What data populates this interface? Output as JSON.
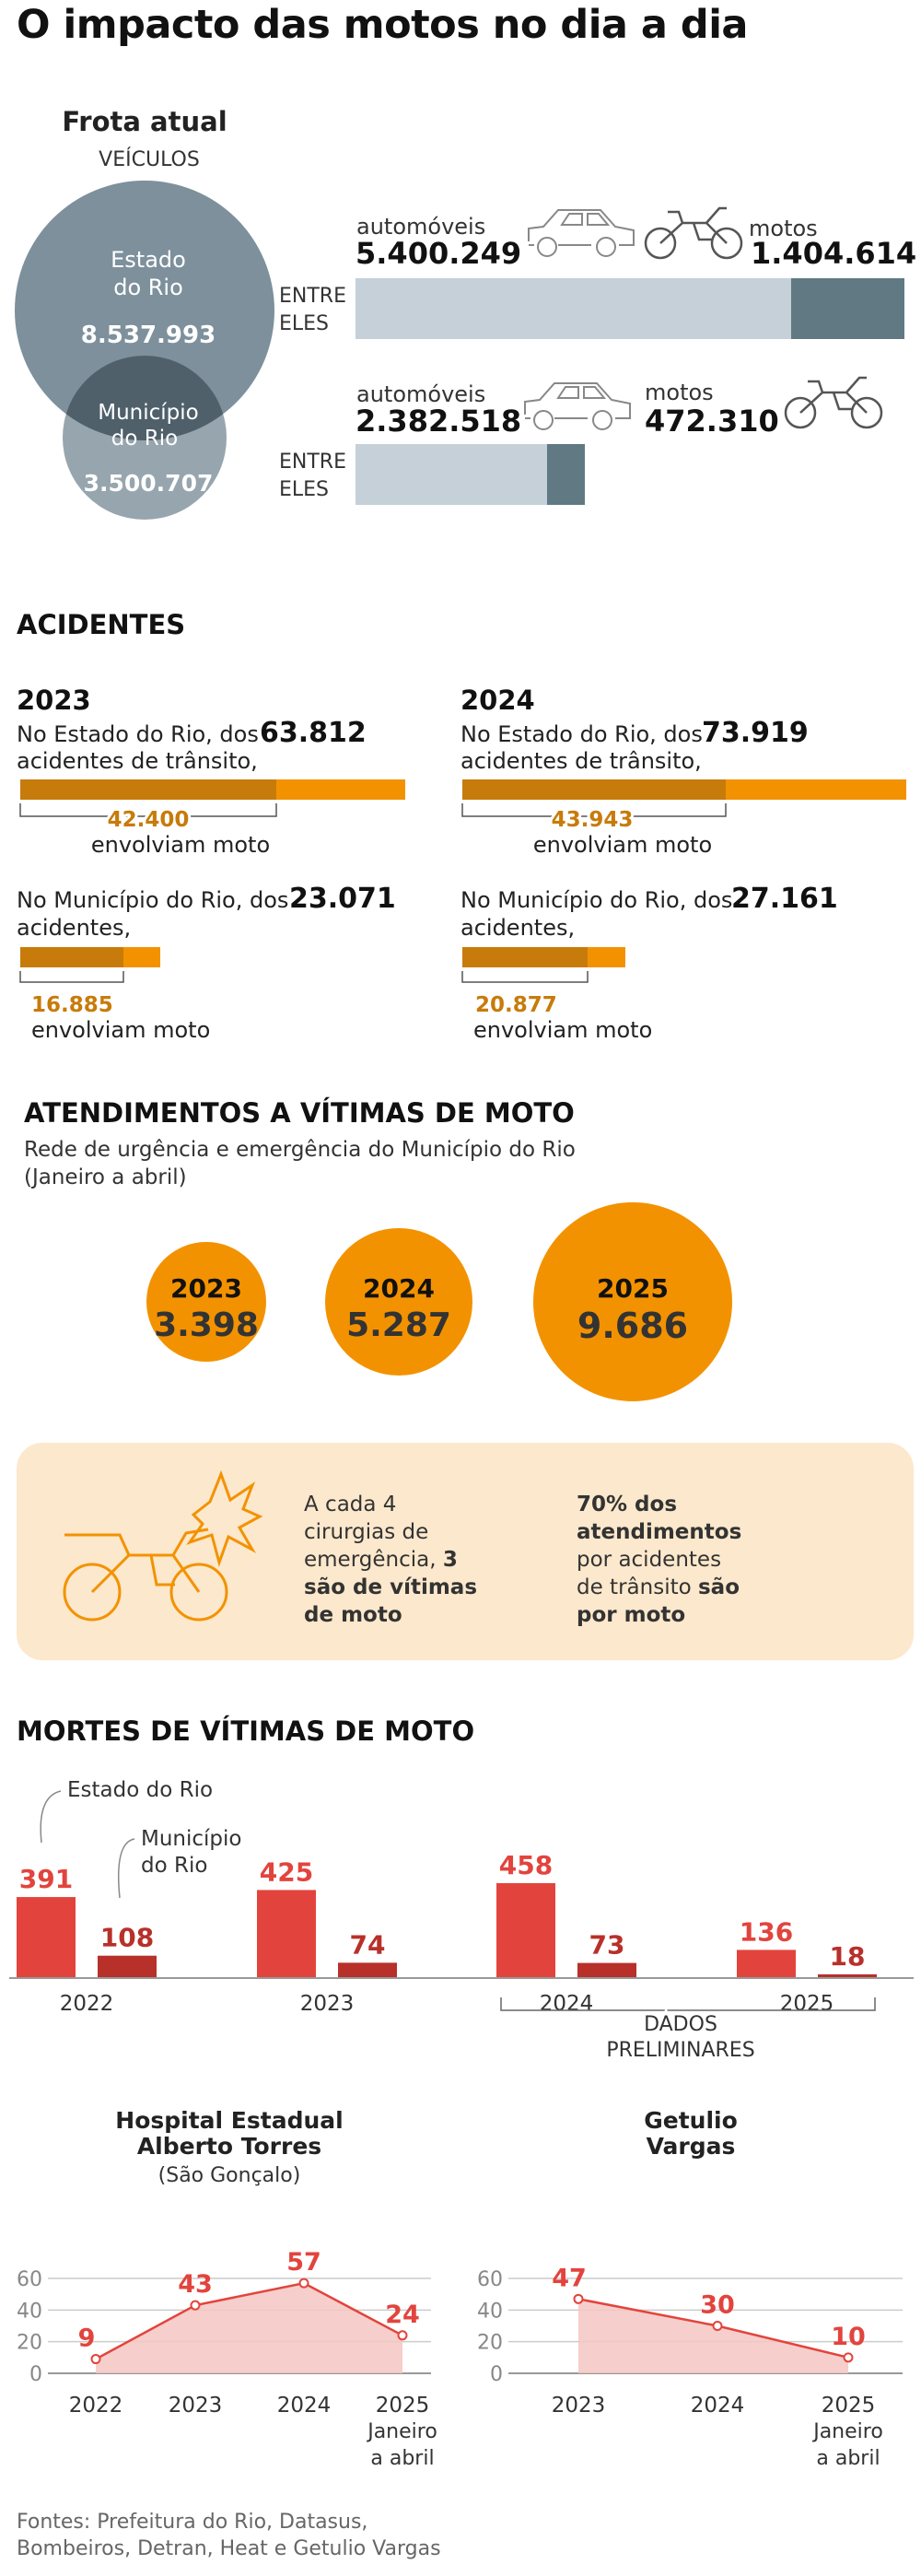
{
  "title": "O impacto das motos no dia a dia",
  "frota": {
    "heading": "Frota atual",
    "subheading": "VEÍCULOS",
    "estado_label_1": "Estado",
    "estado_label_2": "do Rio",
    "estado_total": "8.537.993",
    "municipio_label_1": "Município",
    "municipio_label_2": "do Rio",
    "municipio_total": "3.500.707",
    "entre_1": "ENTRE",
    "entre_2": "ELES",
    "estado_auto_label": "automóveis",
    "estado_auto_value": "5.400.249",
    "estado_moto_label": "motos",
    "estado_moto_value": "1.404.614",
    "municipio_auto_label": "automóveis",
    "municipio_auto_value": "2.382.518",
    "municipio_moto_label": "motos",
    "municipio_moto_value": "472.310"
  },
  "acidentes": {
    "heading": "ACIDENTES",
    "y2023": {
      "year": "2023",
      "estado_text_1": "No Estado do Rio, dos",
      "estado_text_2": "acidentes de trânsito,",
      "estado_total": "63.812",
      "estado_moto": "42.400",
      "envolviam": "envolviam moto",
      "mun_text_1": "No Município do Rio, dos",
      "mun_text_2": "acidentes,",
      "mun_total": "23.071",
      "mun_moto": "16.885"
    },
    "y2024": {
      "year": "2024",
      "estado_text_1": "No Estado do Rio, dos",
      "estado_text_2": "acidentes de trânsito,",
      "estado_total": "73.919",
      "estado_moto": "43.943",
      "envolviam": "envolviam moto",
      "mun_text_1": "No Município do Rio, dos",
      "mun_text_2": "acidentes,",
      "mun_total": "27.161",
      "mun_moto": "20.877"
    }
  },
  "atendimentos": {
    "heading": "ATENDIMENTOS A VÍTIMAS DE MOTO",
    "sub_1": "Rede de urgência e emergência do Município do Rio",
    "sub_2": "(Janeiro a abril)",
    "bubbles": [
      {
        "year": "2023",
        "value": "3.398"
      },
      {
        "year": "2024",
        "value": "5.287"
      },
      {
        "year": "2025",
        "value": "9.686"
      }
    ],
    "box_left_1": "A cada 4",
    "box_left_2": "cirurgias de",
    "box_left_3": "emergência,",
    "box_left_3b": "3",
    "box_left_4": "são de vítimas",
    "box_left_5": "de moto",
    "box_right_1": "70% dos",
    "box_right_2": "atendimentos",
    "box_right_3": "por acidentes",
    "box_right_4": "de trânsito",
    "box_right_4b": "são",
    "box_right_5": "por moto"
  },
  "mortes": {
    "heading": "MORTES DE VÍTIMAS DE MOTO",
    "legend_estado": "Estado do Rio",
    "legend_mun_1": "Município",
    "legend_mun_2": "do Rio",
    "dados_1": "DADOS",
    "dados_2": "PRELIMINARES"
  },
  "hospitais": {
    "h1_line1": "Hospital Estadual",
    "h1_line2": "Alberto Torres",
    "h1_line3": "(São Gonçalo)",
    "h2_line1": "Getulio",
    "h2_line2": "Vargas",
    "janeiro": "Janeiro",
    "a_abril": "a abril"
  },
  "fontes_1": "Fontes: Prefeitura do Rio, Datasus,",
  "fontes_2": "Bombeiros, Detran, Heat e Getulio Vargas",
  "chart_data": [
    {
      "type": "bar",
      "title": "MORTES DE VÍTIMAS DE MOTO",
      "categories": [
        "2022",
        "2023",
        "2024",
        "2025"
      ],
      "series": [
        {
          "name": "Estado do Rio",
          "values": [
            391,
            425,
            458,
            136
          ]
        },
        {
          "name": "Município do Rio",
          "values": [
            108,
            74,
            73,
            18
          ]
        }
      ],
      "annotation": "DADOS PRELIMINARES (2024–2025)"
    },
    {
      "type": "area",
      "title": "Hospital Estadual Alberto Torres (São Gonçalo)",
      "x": [
        "2022",
        "2023",
        "2024",
        "2025"
      ],
      "values": [
        9,
        43,
        57,
        24
      ],
      "ylim": [
        0,
        60
      ],
      "yticks": [
        0,
        20,
        40,
        60
      ],
      "x_note": "Janeiro a abril (2025)",
      "grid": true
    },
    {
      "type": "area",
      "title": "Getulio Vargas",
      "x": [
        "2023",
        "2024",
        "2025"
      ],
      "values": [
        47,
        30,
        10
      ],
      "ylim": [
        0,
        60
      ],
      "yticks": [
        0,
        20,
        40,
        60
      ],
      "x_note": "Janeiro a abril (2025)",
      "grid": true
    }
  ],
  "colors": {
    "slate_light": "#c5d0d8",
    "slate_dark": "#607983",
    "circle_big": "#7d909c",
    "circle_small": "#97a5ae",
    "circle_overlap": "#4f606b",
    "orange": "#f39200",
    "orange_dark": "#c77b0a",
    "cream": "#fce8cc",
    "red": "#e2443d",
    "red_dark": "#b8302a",
    "red_fill": "#f4c6c2"
  }
}
